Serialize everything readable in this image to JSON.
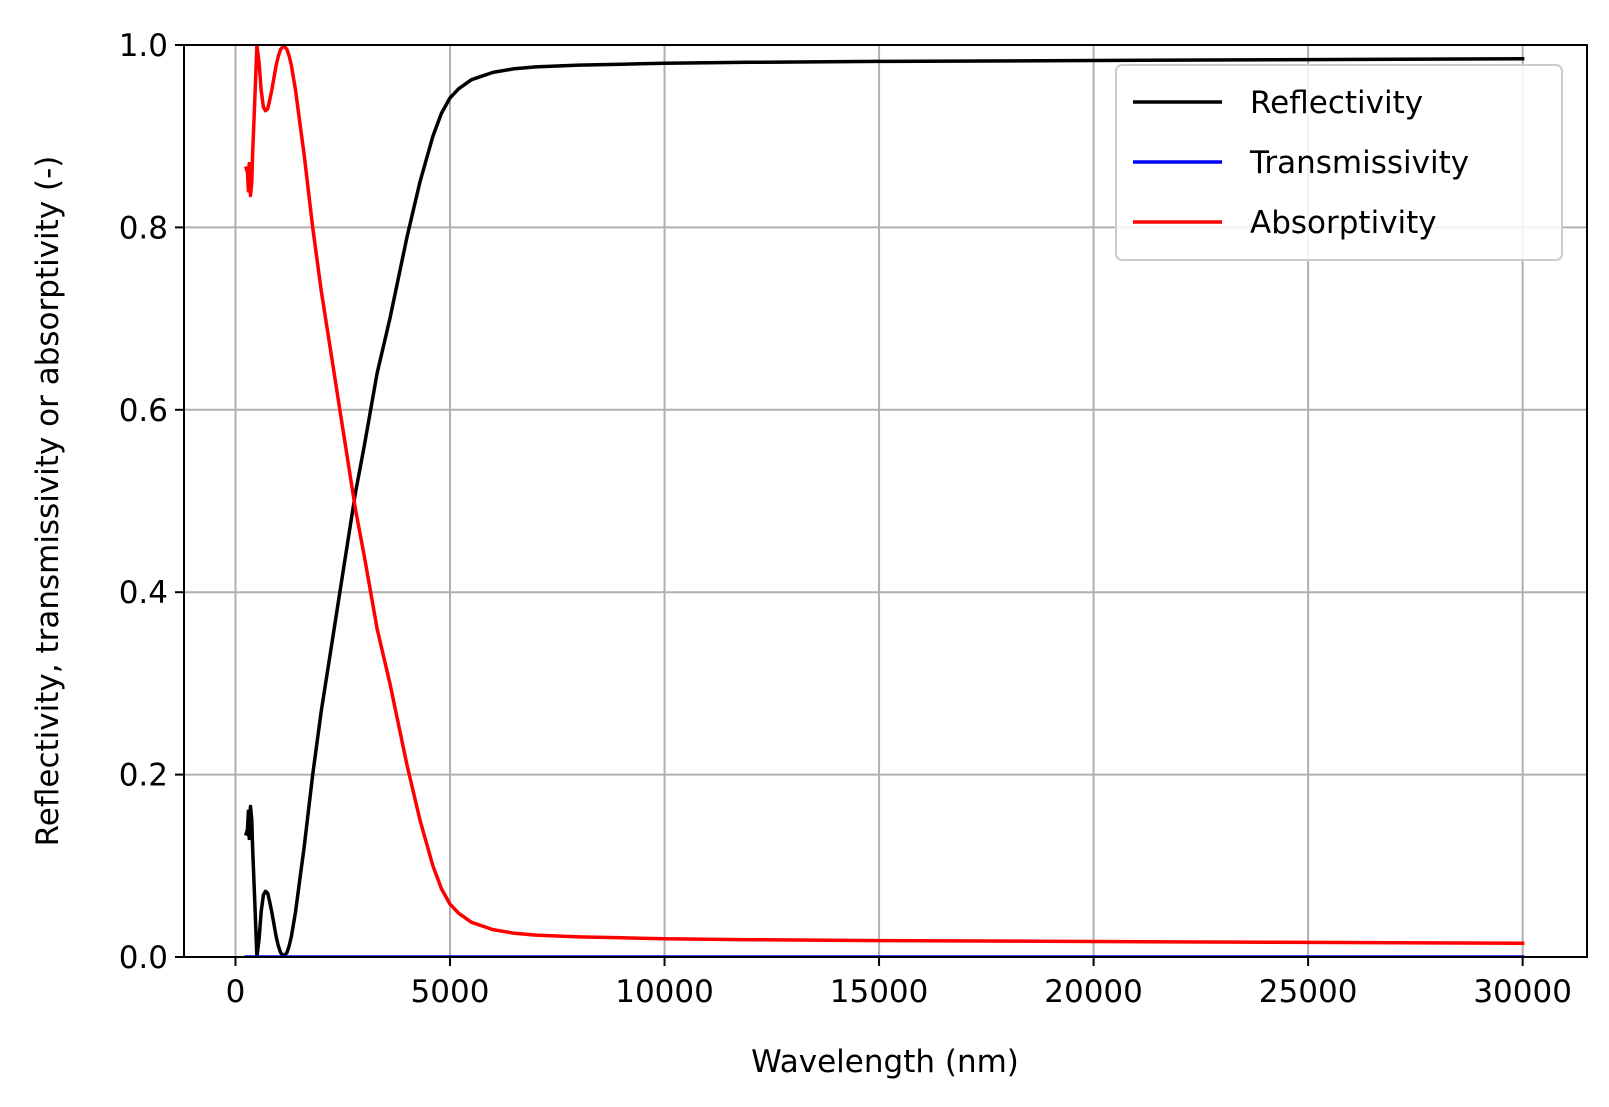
{
  "chart_data": {
    "type": "line",
    "title": "",
    "xlabel": "Wavelength (nm)",
    "ylabel": "Reflectivity, transmissivity or absorptivity (-)",
    "xlim": [
      -1200,
      31500
    ],
    "ylim": [
      0.0,
      1.0
    ],
    "xticks": [
      0,
      5000,
      10000,
      15000,
      20000,
      25000,
      30000
    ],
    "yticks": [
      0.0,
      0.2,
      0.4,
      0.6,
      0.8,
      1.0
    ],
    "xtick_labels": [
      "0",
      "5000",
      "10000",
      "15000",
      "20000",
      "25000",
      "30000"
    ],
    "ytick_labels": [
      "0.0",
      "0.2",
      "0.4",
      "0.6",
      "0.8",
      "1.0"
    ],
    "grid": true,
    "legend_position": "top-right",
    "series": [
      {
        "name": "Reflectivity",
        "color": "#000000",
        "x": [
          250,
          280,
          300,
          320,
          350,
          380,
          400,
          450,
          500,
          550,
          600,
          650,
          700,
          750,
          800,
          850,
          900,
          950,
          1000,
          1050,
          1100,
          1150,
          1200,
          1250,
          1300,
          1400,
          1500,
          1600,
          1800,
          2000,
          2200,
          2500,
          2800,
          3000,
          3300,
          3600,
          4000,
          4300,
          4600,
          4800,
          5000,
          5200,
          5500,
          6000,
          6500,
          7000,
          8000,
          9000,
          10000,
          12000,
          15000,
          20000,
          25000,
          30000
        ],
        "y": [
          0.135,
          0.14,
          0.16,
          0.13,
          0.165,
          0.15,
          0.12,
          0.06,
          0.0,
          0.02,
          0.05,
          0.068,
          0.072,
          0.07,
          0.06,
          0.048,
          0.035,
          0.022,
          0.012,
          0.005,
          0.002,
          0.002,
          0.005,
          0.012,
          0.022,
          0.05,
          0.085,
          0.12,
          0.2,
          0.27,
          0.33,
          0.42,
          0.51,
          0.56,
          0.64,
          0.7,
          0.79,
          0.85,
          0.9,
          0.925,
          0.942,
          0.952,
          0.962,
          0.97,
          0.974,
          0.976,
          0.978,
          0.979,
          0.98,
          0.981,
          0.982,
          0.983,
          0.984,
          0.985
        ]
      },
      {
        "name": "Transmissivity",
        "color": "#0000ff",
        "x": [
          250,
          30000
        ],
        "y": [
          0.0,
          0.0
        ]
      },
      {
        "name": "Absorptivity",
        "color": "#ff0000",
        "x": [
          250,
          280,
          300,
          320,
          350,
          380,
          400,
          450,
          500,
          550,
          600,
          650,
          700,
          750,
          800,
          850,
          900,
          950,
          1000,
          1050,
          1100,
          1150,
          1200,
          1250,
          1300,
          1400,
          1500,
          1600,
          1800,
          2000,
          2200,
          2500,
          2800,
          3000,
          3300,
          3600,
          4000,
          4300,
          4600,
          4800,
          5000,
          5200,
          5500,
          6000,
          6500,
          7000,
          8000,
          9000,
          10000,
          12000,
          15000,
          20000,
          25000,
          30000
        ],
        "y": [
          0.865,
          0.86,
          0.84,
          0.87,
          0.835,
          0.85,
          0.88,
          0.94,
          1.0,
          0.98,
          0.95,
          0.932,
          0.928,
          0.93,
          0.94,
          0.952,
          0.965,
          0.978,
          0.988,
          0.995,
          0.998,
          0.998,
          0.995,
          0.988,
          0.978,
          0.95,
          0.915,
          0.88,
          0.8,
          0.73,
          0.67,
          0.58,
          0.49,
          0.44,
          0.36,
          0.3,
          0.21,
          0.15,
          0.1,
          0.075,
          0.058,
          0.048,
          0.038,
          0.03,
          0.026,
          0.024,
          0.022,
          0.021,
          0.02,
          0.019,
          0.018,
          0.017,
          0.016,
          0.015
        ]
      }
    ]
  }
}
